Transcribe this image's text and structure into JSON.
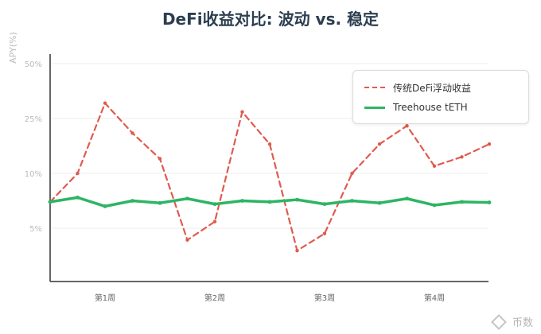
{
  "chart_data": {
    "type": "line",
    "title": "DeFi收益对比: 波动 vs. 稳定",
    "ylabel": "APY(%)",
    "xlabel": "",
    "y_ticks": [
      "50%",
      "25%",
      "10%",
      "5%"
    ],
    "x_ticks": [
      {
        "label": "第1周",
        "index": 2
      },
      {
        "label": "第2周",
        "index": 6
      },
      {
        "label": "第3周",
        "index": 10
      },
      {
        "label": "第4周",
        "index": 14
      }
    ],
    "x_count": 17,
    "series": [
      {
        "name": "传统DeFi浮动收益",
        "color": "#e05a4e",
        "style": "dashed",
        "values": [
          7.4,
          10.0,
          32.0,
          21.0,
          14.0,
          3.9,
          5.6,
          28.0,
          18.0,
          2.9,
          4.5,
          10.0,
          18.0,
          23.0,
          12.0,
          14.5,
          18.0
        ]
      },
      {
        "name": "Treehouse tETH",
        "color": "#2db563",
        "style": "solid",
        "values": [
          7.4,
          7.8,
          7.0,
          7.5,
          7.3,
          7.7,
          7.2,
          7.5,
          7.4,
          7.6,
          7.2,
          7.5,
          7.3,
          7.7,
          7.1,
          7.4,
          7.35
        ]
      }
    ],
    "grid": true,
    "legend_position": "top-right"
  },
  "watermark": {
    "text": "币数"
  }
}
